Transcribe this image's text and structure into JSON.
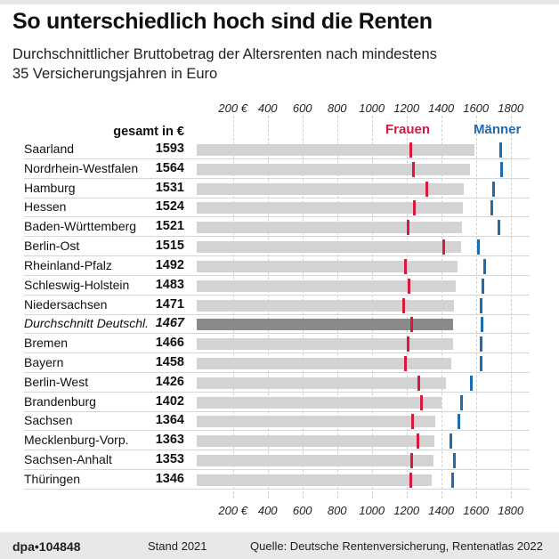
{
  "title": "So unterschiedlich hoch sind die Renten",
  "subtitle_line1": "Durchschnittlicher Bruttobetrag der Altersrenten nach mindestens",
  "subtitle_line2": "35 Versicherungsjahren in Euro",
  "footer": {
    "logo": "dpa•104848",
    "stand": "Stand 2021",
    "source": "Quelle: Deutsche Rentenversicherung, Rentenatlas 2022"
  },
  "chart_data": {
    "type": "bar",
    "orientation": "horizontal",
    "column_header": "gesamt in €",
    "xlim": [
      0,
      1900
    ],
    "ticks": [
      200,
      400,
      600,
      800,
      1000,
      1200,
      1400,
      1600,
      1800
    ],
    "tick_labels": [
      "200 €",
      "400",
      "600",
      "800",
      "1000",
      "1200",
      "1400",
      "1600",
      "1800"
    ],
    "grid": true,
    "colors": {
      "bar": "#d3d3d3",
      "highlight_bar": "#8a8a8a",
      "frauen": "#d7193f",
      "maenner": "#1f6bb0"
    },
    "series": [
      {
        "name": "Frauen",
        "values": [
          1225,
          1240,
          1315,
          1245,
          1210,
          1415,
          1195,
          1215,
          1185,
          1230,
          1210,
          1195,
          1270,
          1285,
          1235,
          1265,
          1230,
          1225
        ]
      },
      {
        "name": "Männer",
        "values": [
          1745,
          1750,
          1700,
          1690,
          1730,
          1615,
          1650,
          1640,
          1630,
          1635,
          1630,
          1630,
          1575,
          1515,
          1500,
          1455,
          1475,
          1465
        ]
      }
    ],
    "categories": [
      "Saarland",
      "Nordrhein-Westfalen",
      "Hamburg",
      "Hessen",
      "Baden-Württemberg",
      "Berlin-Ost",
      "Rheinland-Pfalz",
      "Schleswig-Holstein",
      "Niedersachsen",
      "Durchschnitt Deutschl.",
      "Bremen",
      "Bayern",
      "Berlin-West",
      "Brandenburg",
      "Sachsen",
      "Mecklenburg-Vorp.",
      "Sachsen-Anhalt",
      "Thüringen"
    ],
    "values": [
      1593,
      1564,
      1531,
      1524,
      1521,
      1515,
      1492,
      1483,
      1471,
      1467,
      1466,
      1458,
      1426,
      1402,
      1364,
      1363,
      1353,
      1346
    ],
    "highlight": "Durchschnitt Deutschl."
  }
}
